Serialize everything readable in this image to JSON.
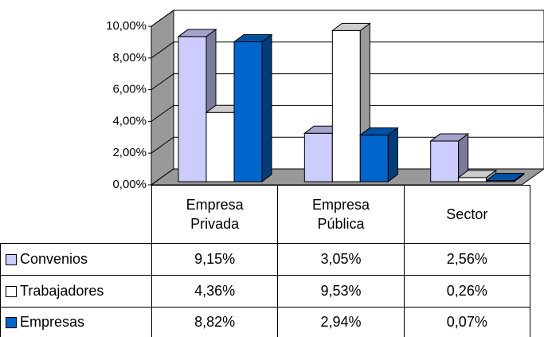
{
  "chart_data": {
    "type": "bar3d",
    "categories": [
      "Empresa Privada",
      "Empresa Pública",
      "Sector"
    ],
    "series": [
      {
        "name": "Convenios",
        "color": "#ccccff",
        "values": [
          9.15,
          3.05,
          2.56
        ],
        "value_labels": [
          "9,15%",
          "3,05%",
          "2,56%"
        ]
      },
      {
        "name": "Trabajadores",
        "color": "#ffffff",
        "values": [
          4.36,
          9.53,
          0.26
        ],
        "value_labels": [
          "4,36%",
          "9,53%",
          "0,26%"
        ]
      },
      {
        "name": "Empresas",
        "color": "#0066cc",
        "values": [
          8.82,
          2.94,
          0.07
        ],
        "value_labels": [
          "8,82%",
          "2,94%",
          "0,07%"
        ]
      }
    ],
    "ylim": [
      0,
      10
    ],
    "yticks": [
      {
        "value": 0,
        "label": "0,00%"
      },
      {
        "value": 2,
        "label": "2,00%"
      },
      {
        "value": 4,
        "label": "4,00%"
      },
      {
        "value": 6,
        "label": "6,00%"
      },
      {
        "value": 8,
        "label": "8,00%"
      },
      {
        "value": 10,
        "label": "10,00%"
      }
    ],
    "grid": true,
    "data_table": true
  }
}
